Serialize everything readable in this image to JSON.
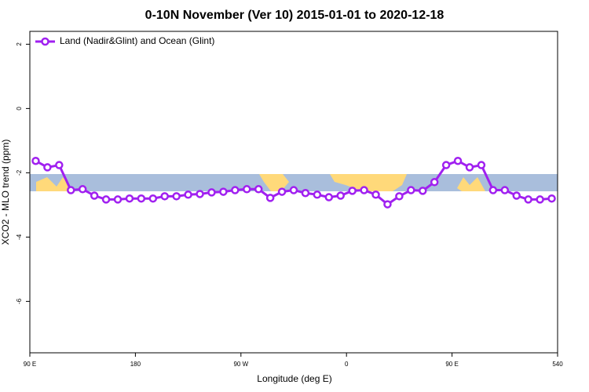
{
  "chart_data": {
    "type": "line",
    "title": "0-10N November (Ver 10)   2015-01-01 to 2020-12-18",
    "xlabel": "Longitude (deg E)",
    "ylabel": "XCO2 - MLO trend (ppm)",
    "x": [
      95,
      105,
      115,
      125,
      135,
      145,
      155,
      165,
      175,
      185,
      195,
      205,
      215,
      225,
      235,
      245,
      255,
      265,
      275,
      285,
      295,
      305,
      315,
      325,
      335,
      345,
      355,
      365,
      375,
      385,
      395,
      405,
      415,
      425,
      435,
      445,
      455,
      465,
      475,
      485,
      495,
      505,
      515,
      525,
      535
    ],
    "series": [
      {
        "name": "Land (Nadir&Glint) and Ocean (Glint)",
        "color": "#a020f0",
        "values": [
          -1.63,
          -1.83,
          -1.76,
          -2.54,
          -2.51,
          -2.71,
          -2.83,
          -2.83,
          -2.8,
          -2.8,
          -2.8,
          -2.73,
          -2.73,
          -2.68,
          -2.66,
          -2.61,
          -2.59,
          -2.54,
          -2.51,
          -2.51,
          -2.78,
          -2.59,
          -2.54,
          -2.63,
          -2.68,
          -2.76,
          -2.71,
          -2.56,
          -2.54,
          -2.68,
          -2.98,
          -2.73,
          -2.54,
          -2.56,
          -2.29,
          -1.76,
          -1.63,
          -1.83,
          -1.76,
          -2.54,
          -2.54,
          -2.71,
          -2.83,
          -2.83,
          -2.8
        ]
      }
    ],
    "xlim": [
      90,
      540
    ],
    "xticks": [
      {
        "value": 90,
        "label": "90 E"
      },
      180,
      {
        "value": 270,
        "label": "90 W"
      },
      {
        "value": 360,
        "label": "0"
      },
      {
        "value": 450,
        "label": "90 E"
      },
      540
    ],
    "ylim": [
      -7.6,
      2.4
    ],
    "yticks": [
      -6,
      -4,
      -2,
      0,
      2
    ],
    "legend": "top-left"
  }
}
